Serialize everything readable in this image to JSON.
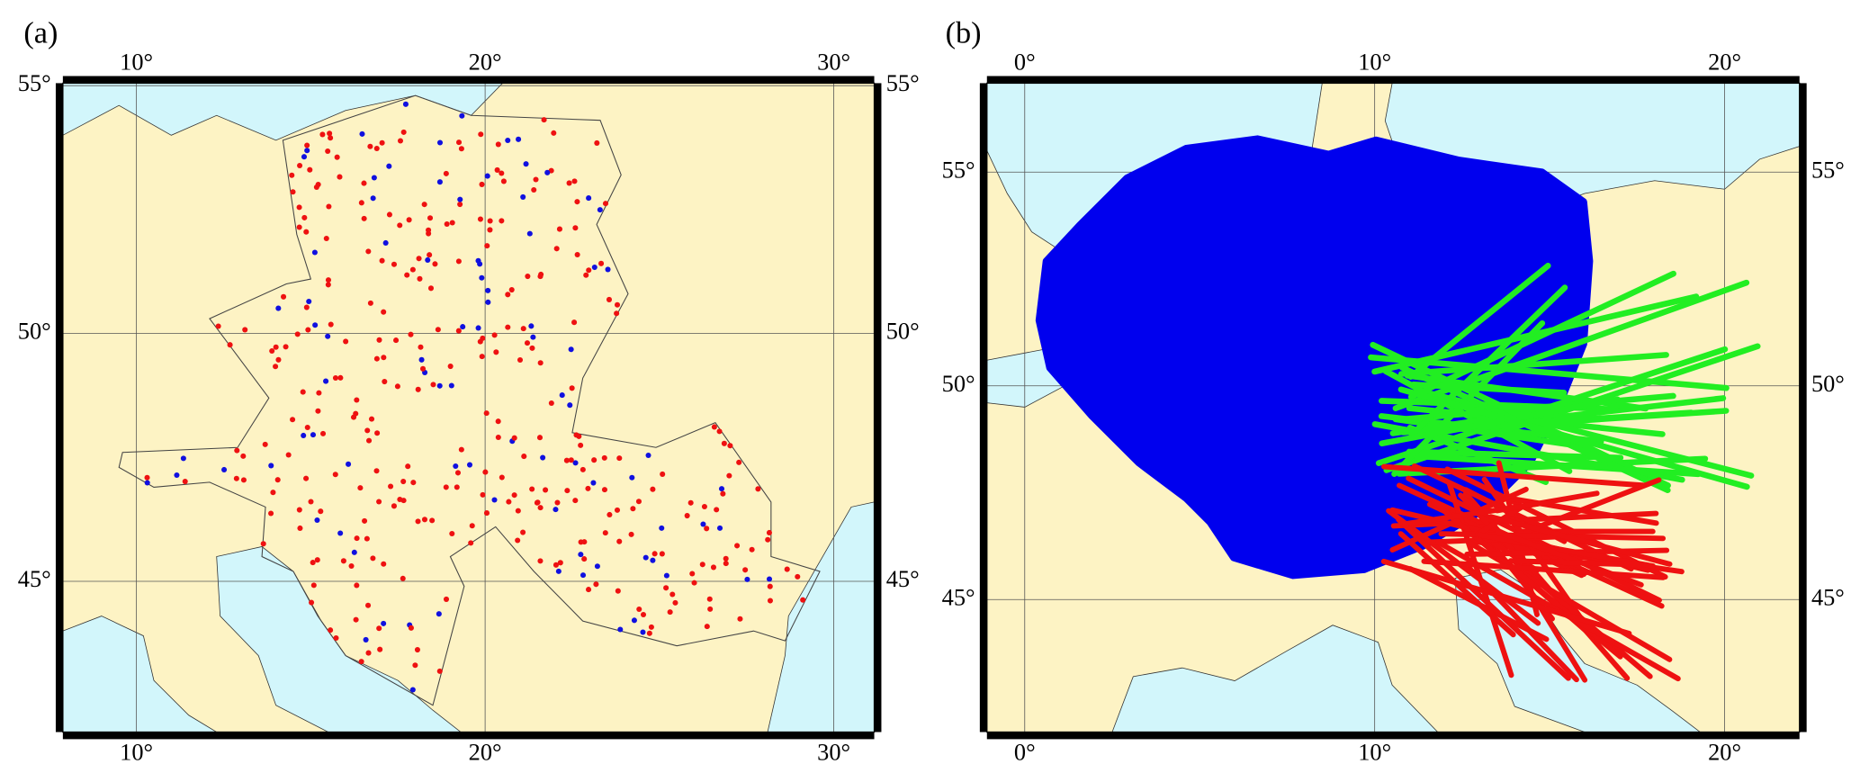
{
  "panels": [
    {
      "label": "(a)",
      "xlim": [
        7.89,
        31.16
      ],
      "ylim": [
        41.96,
        55.05
      ],
      "xticks": [
        {
          "value": 10,
          "label": "10°"
        },
        {
          "value": 20,
          "label": "20°"
        },
        {
          "value": 30,
          "label": "30°"
        }
      ],
      "yticks": [
        {
          "value": 45,
          "label": "45°"
        },
        {
          "value": 50,
          "label": "50°"
        },
        {
          "value": 55,
          "label": "55°"
        }
      ]
    },
    {
      "label": "(b)",
      "xlim": [
        -1.08,
        22.14
      ],
      "ylim": [
        41.9,
        57.08
      ],
      "xticks": [
        {
          "value": 0,
          "label": "0°"
        },
        {
          "value": 10,
          "label": "10°"
        },
        {
          "value": 20,
          "label": "20°"
        }
      ],
      "yticks": [
        {
          "value": 45,
          "label": "45°"
        },
        {
          "value": 50,
          "label": "50°"
        },
        {
          "value": 55,
          "label": "55°"
        }
      ]
    }
  ]
}
